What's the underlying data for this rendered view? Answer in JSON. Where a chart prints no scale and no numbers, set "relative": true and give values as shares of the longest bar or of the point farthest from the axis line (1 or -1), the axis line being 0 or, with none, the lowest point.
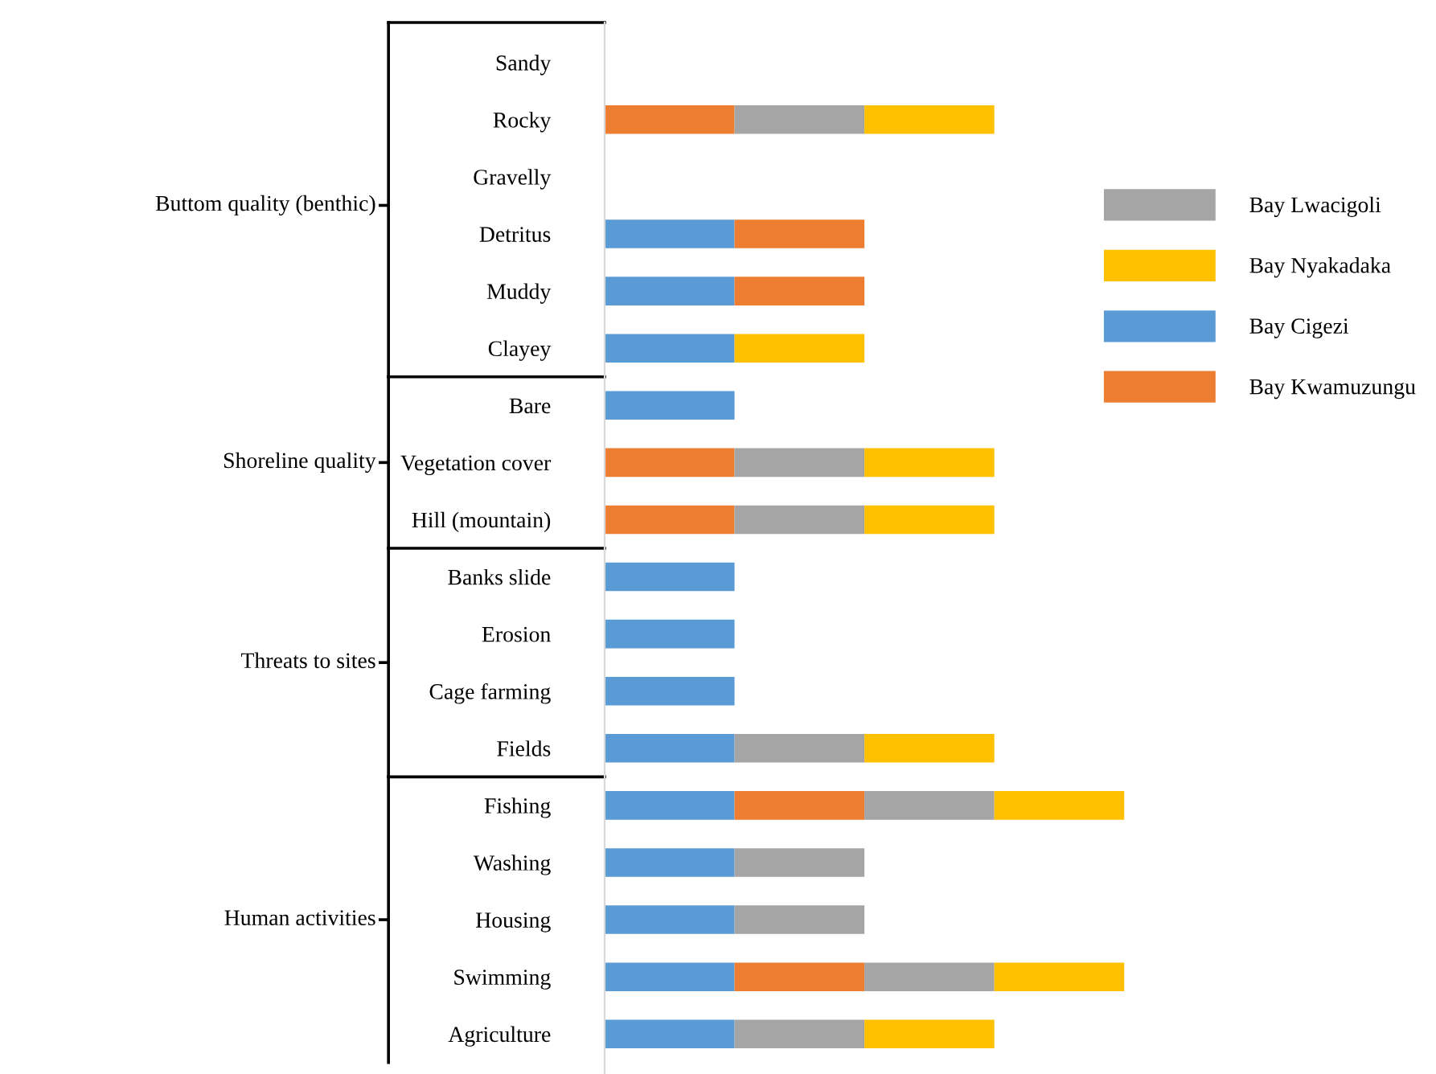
{
  "chart_data": {
    "type": "bar",
    "orientation": "horizontal",
    "stacked": true,
    "relative": true,
    "legend": "right",
    "grid": false,
    "categories": [
      "Sandy",
      "Rocky",
      "Gravelly",
      "Detritus",
      "Muddy",
      "Clayey",
      "Bare",
      "Vegetation cover",
      "Hill (mountain)",
      "Banks slide",
      "Erosion",
      "Cage farming",
      "Fields",
      "Fishing",
      "Washing",
      "Housing",
      "Swimming",
      "Agriculture"
    ],
    "series": [
      {
        "name": "Bay Cigezi",
        "color": "#5b9bd5",
        "values": [
          0,
          0,
          0,
          0.25,
          0.25,
          0.25,
          0.25,
          0,
          0,
          0.25,
          0.25,
          0.25,
          0.25,
          0.25,
          0.25,
          0.25,
          0.25,
          0.25
        ]
      },
      {
        "name": "Bay Kwamuzungu",
        "color": "#ed7d31",
        "values": [
          0,
          0.25,
          0,
          0.25,
          0.25,
          0,
          0,
          0.25,
          0.25,
          0,
          0,
          0,
          0,
          0.25,
          0,
          0,
          0.25,
          0
        ]
      },
      {
        "name": "Bay Lwacigoli",
        "color": "#a5a5a5",
        "values": [
          0,
          0.25,
          0,
          0,
          0,
          0,
          0,
          0.25,
          0.25,
          0,
          0,
          0,
          0.25,
          0.25,
          0.25,
          0.25,
          0.25,
          0.25
        ]
      },
      {
        "name": "Bay Nyakadaka",
        "color": "#ffc000",
        "values": [
          0,
          0.25,
          0,
          0,
          0,
          0.25,
          0,
          0.25,
          0.25,
          0,
          0,
          0,
          0.25,
          0.25,
          0,
          0,
          0.25,
          0.25
        ]
      }
    ],
    "annotations": [
      "Buttom quality (benthic)",
      "Shoreline quality",
      "Threats to sites",
      "Human activities"
    ]
  }
}
